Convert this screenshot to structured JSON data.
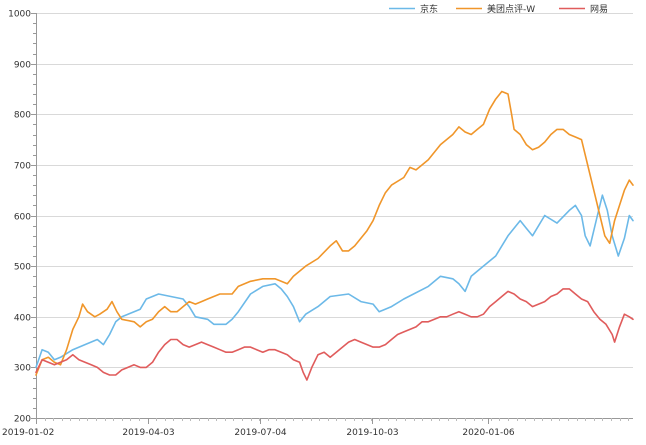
{
  "chart_data": {
    "type": "line",
    "title": "",
    "xlabel": "",
    "ylabel": "",
    "ylim": [
      200,
      1000
    ],
    "yticks": [
      200,
      300,
      400,
      500,
      600,
      700,
      800,
      900,
      1000
    ],
    "xticks": [
      "2019-01-02",
      "2019-04-03",
      "2019-07-04",
      "2019-10-03",
      "2020-01-06"
    ],
    "x_range_days": [
      0,
      487
    ],
    "x_tick_days": [
      0,
      91,
      183,
      274,
      369
    ],
    "grid": "horizontal",
    "legend": "top-right",
    "series": [
      {
        "name": "京东",
        "color": "#6cb9e8",
        "points": [
          [
            0,
            300
          ],
          [
            5,
            335
          ],
          [
            10,
            330
          ],
          [
            15,
            315
          ],
          [
            20,
            320
          ],
          [
            30,
            335
          ],
          [
            40,
            345
          ],
          [
            50,
            355
          ],
          [
            55,
            345
          ],
          [
            60,
            365
          ],
          [
            65,
            390
          ],
          [
            70,
            400
          ],
          [
            80,
            410
          ],
          [
            85,
            415
          ],
          [
            90,
            435
          ],
          [
            100,
            445
          ],
          [
            110,
            440
          ],
          [
            120,
            435
          ],
          [
            125,
            420
          ],
          [
            130,
            400
          ],
          [
            140,
            395
          ],
          [
            145,
            385
          ],
          [
            155,
            385
          ],
          [
            160,
            395
          ],
          [
            165,
            410
          ],
          [
            175,
            445
          ],
          [
            185,
            460
          ],
          [
            195,
            465
          ],
          [
            200,
            455
          ],
          [
            205,
            440
          ],
          [
            210,
            420
          ],
          [
            215,
            390
          ],
          [
            220,
            405
          ],
          [
            230,
            420
          ],
          [
            240,
            440
          ],
          [
            255,
            445
          ],
          [
            265,
            430
          ],
          [
            275,
            425
          ],
          [
            280,
            410
          ],
          [
            290,
            420
          ],
          [
            300,
            435
          ],
          [
            320,
            460
          ],
          [
            330,
            480
          ],
          [
            340,
            475
          ],
          [
            345,
            465
          ],
          [
            350,
            450
          ],
          [
            355,
            480
          ],
          [
            365,
            500
          ],
          [
            375,
            520
          ],
          [
            385,
            560
          ],
          [
            395,
            590
          ],
          [
            400,
            575
          ],
          [
            405,
            560
          ],
          [
            415,
            600
          ],
          [
            425,
            585
          ],
          [
            435,
            610
          ],
          [
            440,
            620
          ],
          [
            445,
            600
          ],
          [
            448,
            560
          ],
          [
            452,
            540
          ],
          [
            458,
            600
          ],
          [
            462,
            640
          ],
          [
            466,
            610
          ],
          [
            470,
            560
          ],
          [
            475,
            520
          ],
          [
            480,
            555
          ],
          [
            484,
            600
          ],
          [
            487,
            590
          ]
        ]
      },
      {
        "name": "美团点评-W",
        "color": "#f0962a",
        "points": [
          [
            0,
            285
          ],
          [
            5,
            315
          ],
          [
            10,
            320
          ],
          [
            15,
            310
          ],
          [
            20,
            305
          ],
          [
            25,
            335
          ],
          [
            30,
            375
          ],
          [
            35,
            400
          ],
          [
            38,
            425
          ],
          [
            42,
            410
          ],
          [
            48,
            400
          ],
          [
            52,
            405
          ],
          [
            58,
            415
          ],
          [
            62,
            430
          ],
          [
            66,
            410
          ],
          [
            70,
            395
          ],
          [
            80,
            390
          ],
          [
            85,
            380
          ],
          [
            90,
            390
          ],
          [
            95,
            395
          ],
          [
            100,
            410
          ],
          [
            105,
            420
          ],
          [
            110,
            410
          ],
          [
            115,
            410
          ],
          [
            120,
            420
          ],
          [
            125,
            430
          ],
          [
            130,
            425
          ],
          [
            135,
            430
          ],
          [
            140,
            435
          ],
          [
            150,
            445
          ],
          [
            160,
            445
          ],
          [
            165,
            460
          ],
          [
            175,
            470
          ],
          [
            185,
            475
          ],
          [
            195,
            475
          ],
          [
            200,
            470
          ],
          [
            205,
            465
          ],
          [
            210,
            480
          ],
          [
            220,
            500
          ],
          [
            230,
            515
          ],
          [
            240,
            540
          ],
          [
            245,
            550
          ],
          [
            250,
            530
          ],
          [
            255,
            530
          ],
          [
            260,
            540
          ],
          [
            265,
            555
          ],
          [
            270,
            570
          ],
          [
            275,
            590
          ],
          [
            280,
            620
          ],
          [
            285,
            645
          ],
          [
            290,
            660
          ],
          [
            300,
            675
          ],
          [
            305,
            695
          ],
          [
            310,
            690
          ],
          [
            315,
            700
          ],
          [
            320,
            710
          ],
          [
            330,
            740
          ],
          [
            340,
            760
          ],
          [
            345,
            775
          ],
          [
            350,
            765
          ],
          [
            355,
            760
          ],
          [
            360,
            770
          ],
          [
            365,
            780
          ],
          [
            370,
            810
          ],
          [
            375,
            830
          ],
          [
            380,
            845
          ],
          [
            385,
            840
          ],
          [
            388,
            800
          ],
          [
            390,
            770
          ],
          [
            395,
            760
          ],
          [
            400,
            740
          ],
          [
            405,
            730
          ],
          [
            410,
            735
          ],
          [
            415,
            745
          ],
          [
            420,
            760
          ],
          [
            425,
            770
          ],
          [
            430,
            770
          ],
          [
            435,
            760
          ],
          [
            440,
            755
          ],
          [
            445,
            750
          ],
          [
            448,
            720
          ],
          [
            452,
            680
          ],
          [
            456,
            640
          ],
          [
            460,
            600
          ],
          [
            464,
            560
          ],
          [
            468,
            545
          ],
          [
            472,
            590
          ],
          [
            476,
            620
          ],
          [
            480,
            650
          ],
          [
            484,
            670
          ],
          [
            487,
            660
          ]
        ]
      },
      {
        "name": "网易",
        "color": "#e05c5c",
        "points": [
          [
            0,
            290
          ],
          [
            5,
            315
          ],
          [
            10,
            310
          ],
          [
            15,
            305
          ],
          [
            20,
            310
          ],
          [
            25,
            315
          ],
          [
            30,
            325
          ],
          [
            35,
            315
          ],
          [
            40,
            310
          ],
          [
            45,
            305
          ],
          [
            50,
            300
          ],
          [
            55,
            290
          ],
          [
            60,
            285
          ],
          [
            65,
            285
          ],
          [
            70,
            295
          ],
          [
            75,
            300
          ],
          [
            80,
            305
          ],
          [
            85,
            300
          ],
          [
            90,
            300
          ],
          [
            95,
            310
          ],
          [
            100,
            330
          ],
          [
            105,
            345
          ],
          [
            110,
            355
          ],
          [
            115,
            355
          ],
          [
            120,
            345
          ],
          [
            125,
            340
          ],
          [
            130,
            345
          ],
          [
            135,
            350
          ],
          [
            140,
            345
          ],
          [
            145,
            340
          ],
          [
            150,
            335
          ],
          [
            155,
            330
          ],
          [
            160,
            330
          ],
          [
            165,
            335
          ],
          [
            170,
            340
          ],
          [
            175,
            340
          ],
          [
            180,
            335
          ],
          [
            185,
            330
          ],
          [
            190,
            335
          ],
          [
            195,
            335
          ],
          [
            200,
            330
          ],
          [
            205,
            325
          ],
          [
            210,
            315
          ],
          [
            215,
            310
          ],
          [
            218,
            290
          ],
          [
            221,
            275
          ],
          [
            225,
            300
          ],
          [
            230,
            325
          ],
          [
            235,
            330
          ],
          [
            240,
            320
          ],
          [
            245,
            330
          ],
          [
            250,
            340
          ],
          [
            255,
            350
          ],
          [
            260,
            355
          ],
          [
            265,
            350
          ],
          [
            270,
            345
          ],
          [
            275,
            340
          ],
          [
            280,
            340
          ],
          [
            285,
            345
          ],
          [
            290,
            355
          ],
          [
            295,
            365
          ],
          [
            300,
            370
          ],
          [
            305,
            375
          ],
          [
            310,
            380
          ],
          [
            315,
            390
          ],
          [
            320,
            390
          ],
          [
            325,
            395
          ],
          [
            330,
            400
          ],
          [
            335,
            400
          ],
          [
            340,
            405
          ],
          [
            345,
            410
          ],
          [
            350,
            405
          ],
          [
            355,
            400
          ],
          [
            360,
            400
          ],
          [
            365,
            405
          ],
          [
            370,
            420
          ],
          [
            375,
            430
          ],
          [
            380,
            440
          ],
          [
            385,
            450
          ],
          [
            390,
            445
          ],
          [
            395,
            435
          ],
          [
            400,
            430
          ],
          [
            405,
            420
          ],
          [
            410,
            425
          ],
          [
            415,
            430
          ],
          [
            420,
            440
          ],
          [
            425,
            445
          ],
          [
            430,
            455
          ],
          [
            435,
            455
          ],
          [
            440,
            445
          ],
          [
            445,
            435
          ],
          [
            450,
            430
          ],
          [
            455,
            410
          ],
          [
            460,
            395
          ],
          [
            465,
            385
          ],
          [
            470,
            365
          ],
          [
            472,
            350
          ],
          [
            476,
            380
          ],
          [
            480,
            405
          ],
          [
            484,
            400
          ],
          [
            487,
            395
          ]
        ]
      }
    ]
  }
}
